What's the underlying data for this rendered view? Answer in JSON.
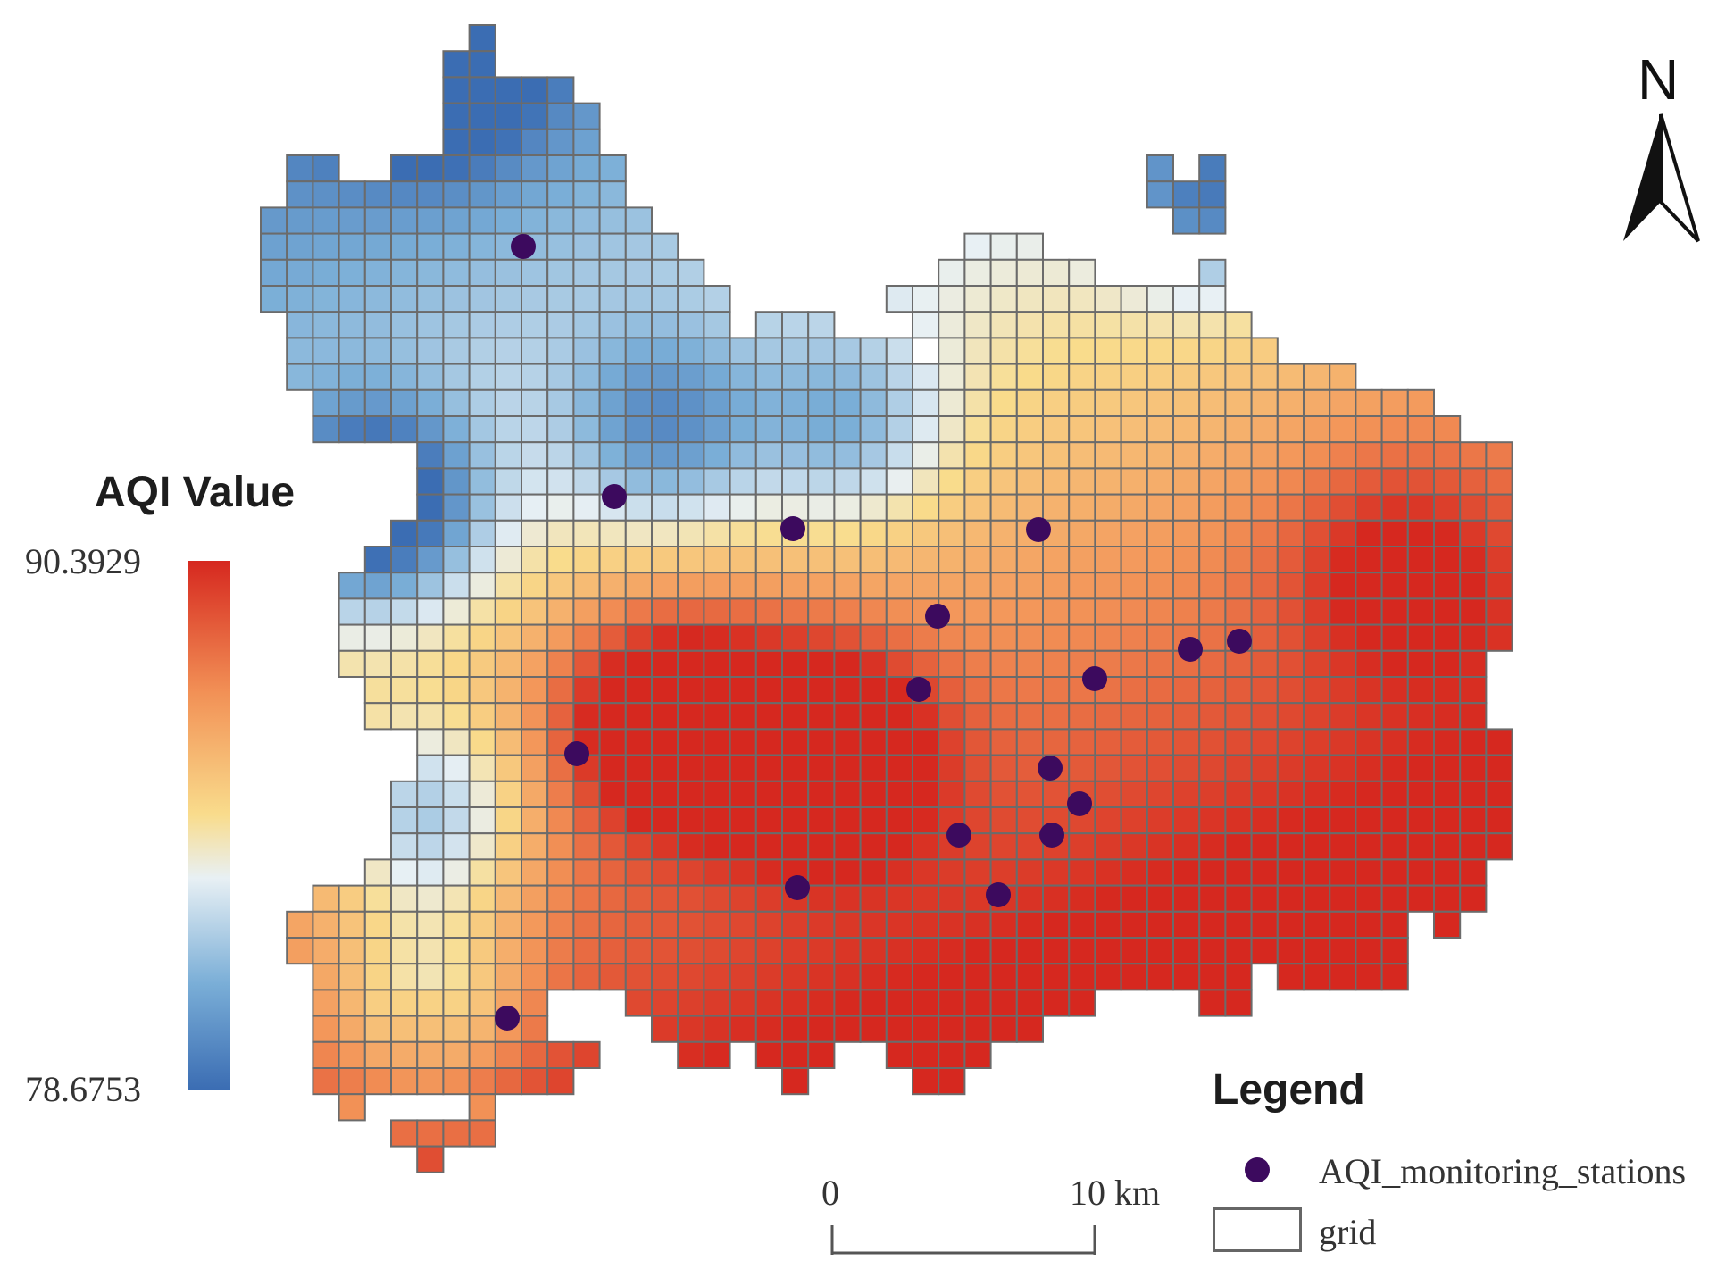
{
  "colorbar": {
    "title": "AQI Value",
    "max_label": "90.3929",
    "min_label": "78.6753",
    "min_value": 78.6753,
    "max_value": 90.3929,
    "colors": [
      "#3b6db3",
      "#5a93cc",
      "#a6cde6",
      "#e8f0f4",
      "#f9dc8c",
      "#f7a45e",
      "#e54b2c",
      "#d6281f"
    ]
  },
  "legend": {
    "title": "Legend",
    "stations_label": "AQI_monitoring_stations",
    "grid_label": "grid",
    "station_color": "#3c0a5e"
  },
  "scale_bar": {
    "zero_label": "0",
    "end_label": "10 km"
  },
  "north_arrow": {
    "label": "N",
    "icon": "north-arrow-icon"
  },
  "stations_count": 17
}
